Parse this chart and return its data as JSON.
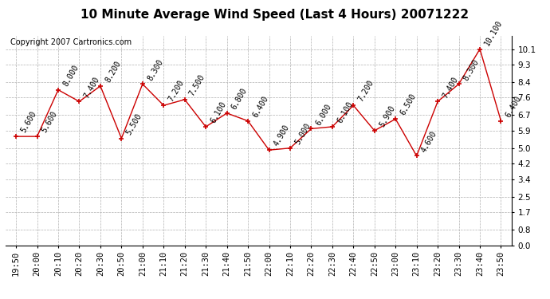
{
  "title": "10 Minute Average Wind Speed (Last 4 Hours) 20071222",
  "copyright": "Copyright 2007 Cartronics.com",
  "times": [
    "19:50",
    "20:00",
    "20:10",
    "20:20",
    "20:30",
    "20:50",
    "21:00",
    "21:10",
    "21:20",
    "21:30",
    "21:40",
    "21:50",
    "22:00",
    "22:10",
    "22:20",
    "22:30",
    "22:40",
    "22:50",
    "23:00",
    "23:10",
    "23:20",
    "23:30",
    "23:40",
    "23:50"
  ],
  "values": [
    5.6,
    5.6,
    8.0,
    7.4,
    8.2,
    5.5,
    8.3,
    7.2,
    7.5,
    6.1,
    6.8,
    6.4,
    4.9,
    5.0,
    6.0,
    6.1,
    7.2,
    5.9,
    6.5,
    4.6,
    7.4,
    8.3,
    10.1,
    6.4
  ],
  "value_labels": [
    "5.600",
    "5.600",
    "8.000",
    "7.400",
    "8.200",
    "5.500",
    "8.300",
    "7.200",
    "7.500",
    "6.100",
    "6.800",
    "6.400",
    "4.900",
    "5.000",
    "6.000",
    "6.100",
    "7.200",
    "5.900",
    "6.500",
    "4.600",
    "7.400",
    "8.300",
    "10.100",
    "6.400"
  ],
  "ylim": [
    0.0,
    10.78
  ],
  "yticks": [
    0.0,
    0.8,
    1.7,
    2.5,
    3.4,
    4.2,
    5.0,
    5.9,
    6.7,
    7.6,
    8.4,
    9.3,
    10.1
  ],
  "line_color": "#cc0000",
  "marker_color": "#cc0000",
  "bg_color": "#ffffff",
  "plot_bg_color": "#ffffff",
  "grid_color": "#b0b0b0",
  "title_fontsize": 11,
  "label_fontsize": 7.5,
  "annotation_fontsize": 7,
  "copyright_fontsize": 7
}
